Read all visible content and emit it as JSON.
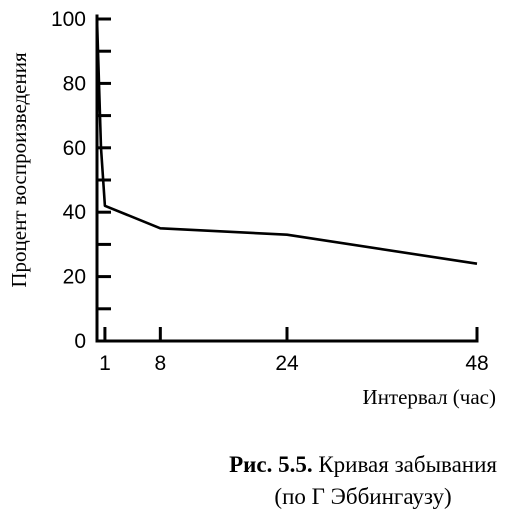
{
  "chart_data": {
    "type": "line",
    "x": [
      0,
      0.5,
      1,
      8,
      24,
      48
    ],
    "values": [
      100,
      60,
      42,
      35,
      33,
      24
    ],
    "xlabel": "Интервал (час)",
    "ylabel": "Процент воспроизведения",
    "xticks": [
      1,
      8,
      24,
      48
    ],
    "yticks": [
      0,
      20,
      40,
      60,
      80,
      100
    ],
    "xlim": [
      0,
      48
    ],
    "ylim": [
      0,
      100
    ],
    "grid": false
  },
  "caption": {
    "fig_label": "Рис. 5.5.",
    "title": "Кривая забывания",
    "source": "(по Г  Эббингаузу)"
  }
}
